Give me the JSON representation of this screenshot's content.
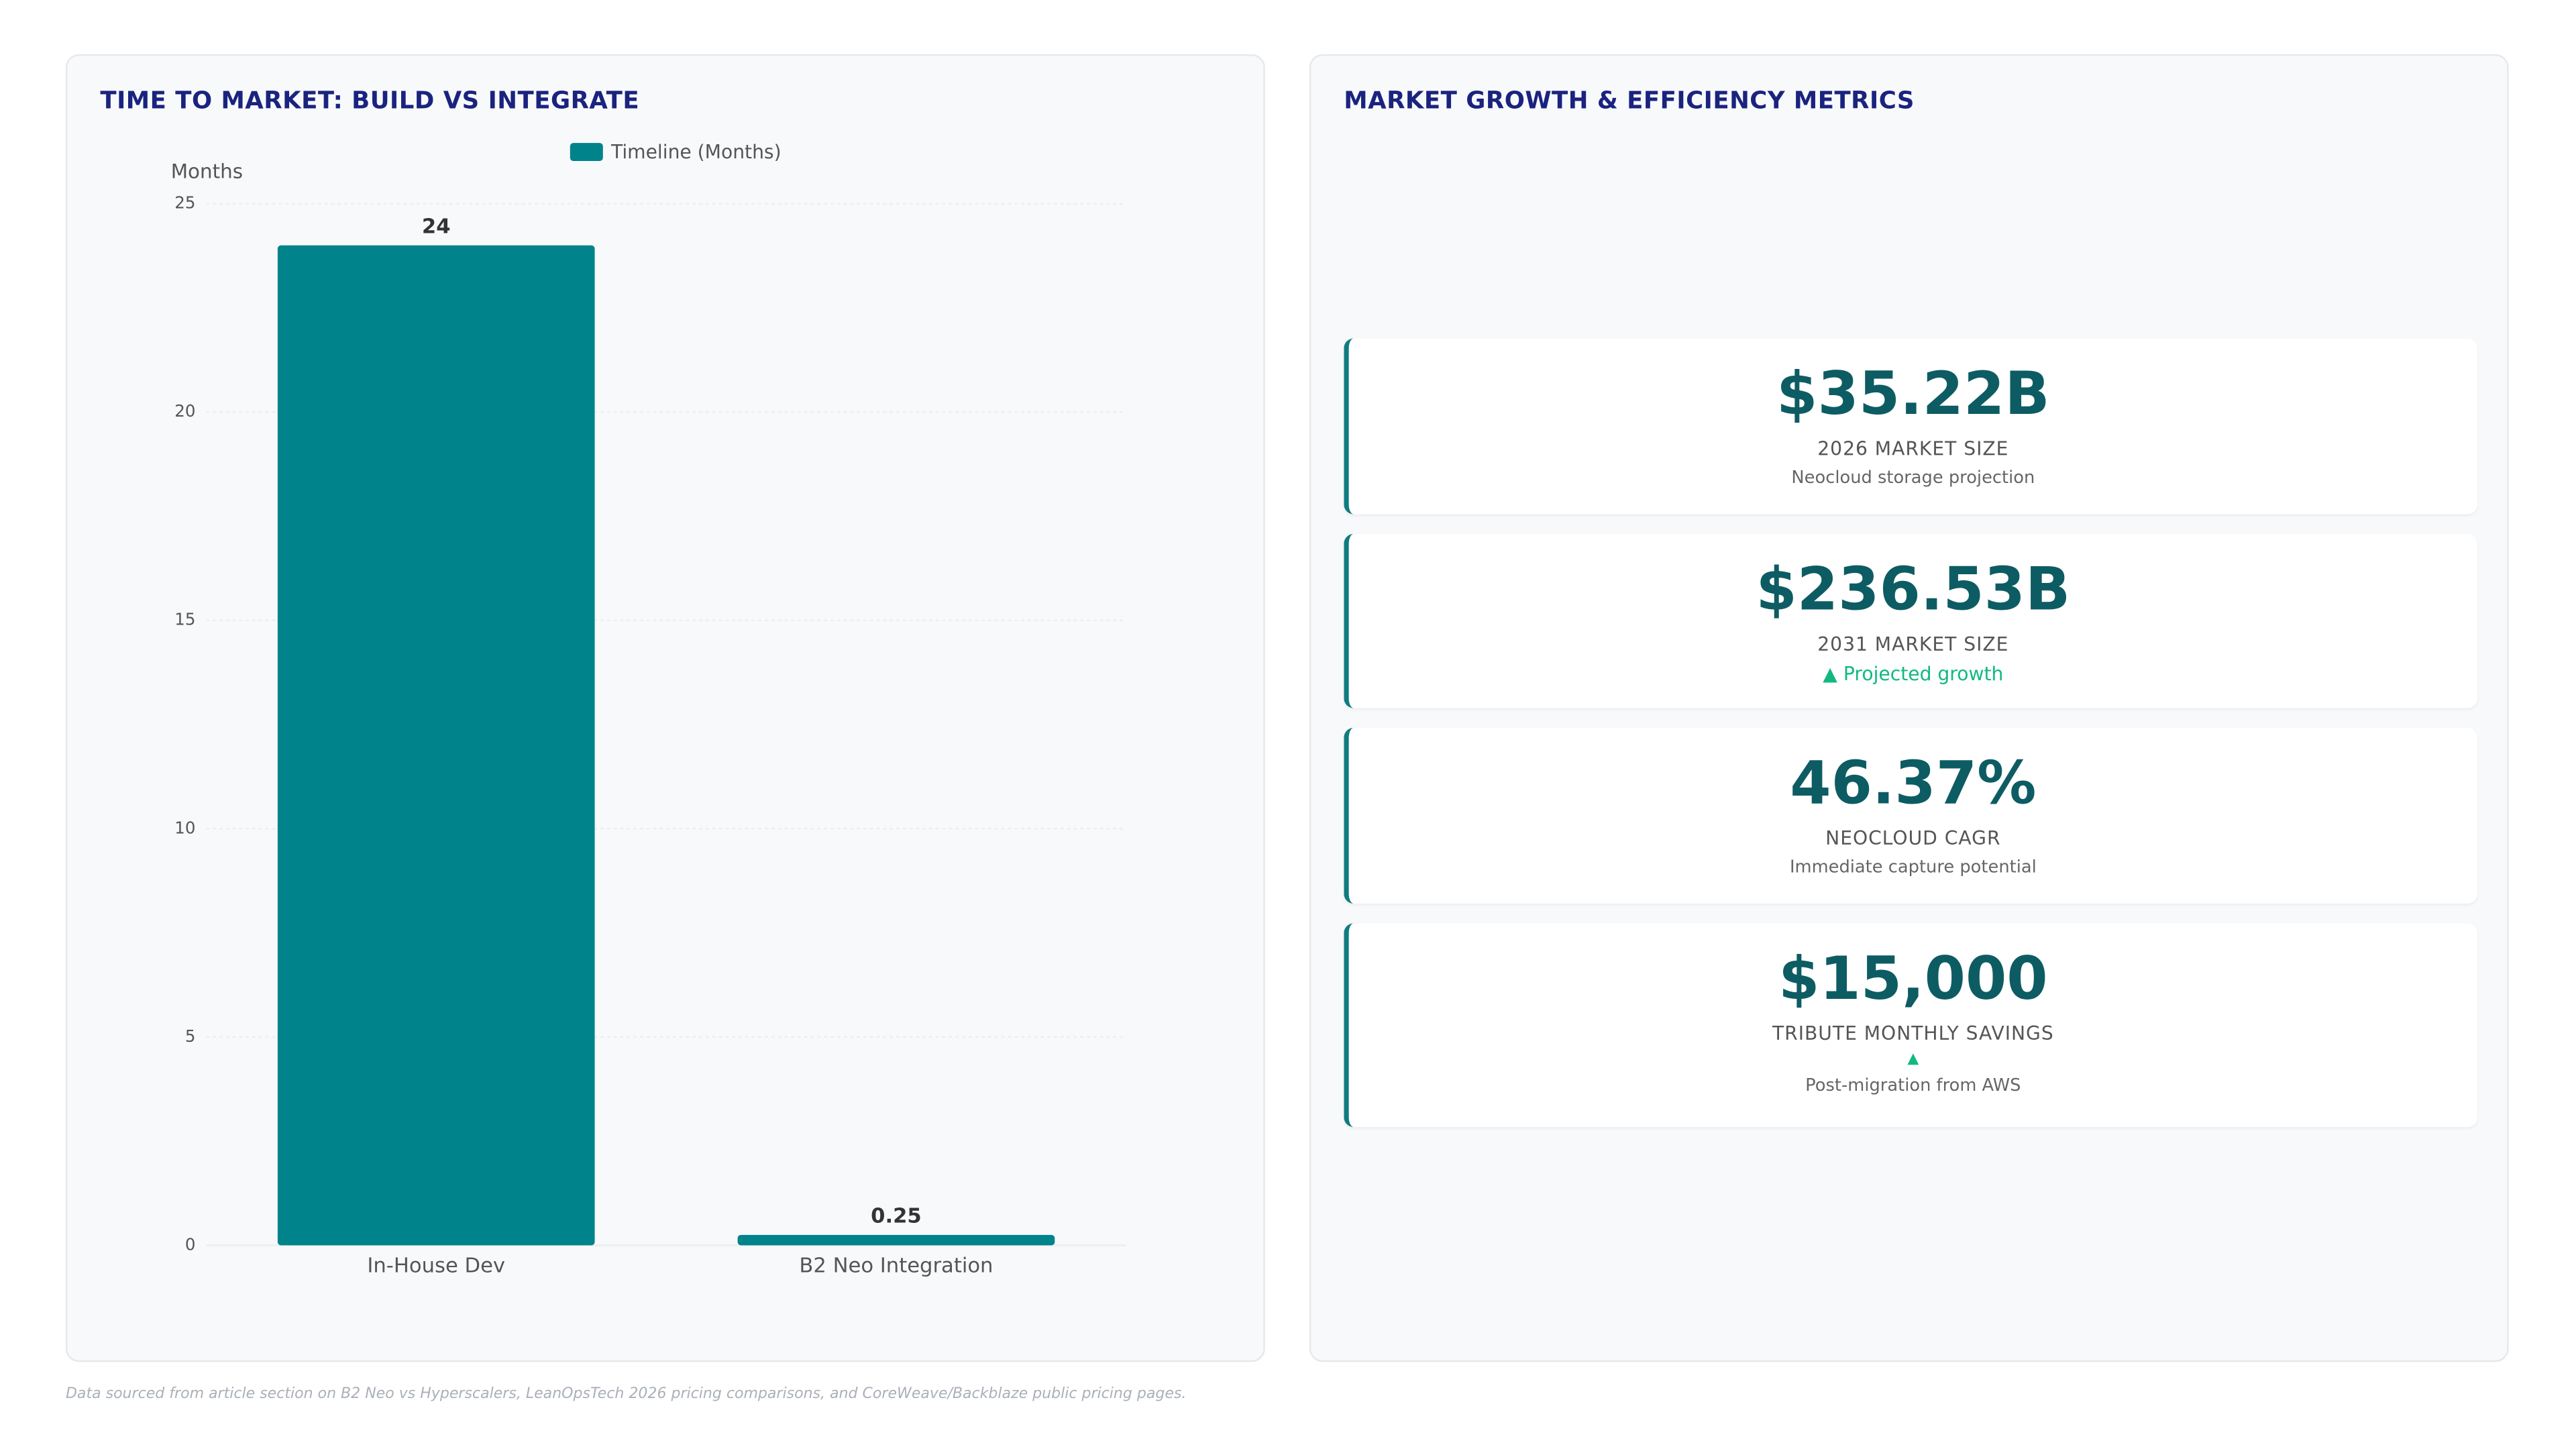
{
  "chart_data": {
    "type": "bar",
    "title": "TIME TO MARKET: BUILD VS INTEGRATE",
    "y_label": "Months",
    "categories": [
      "In-House Dev",
      "B2 Neo Integration"
    ],
    "series": [
      {
        "name": "Timeline (Months)",
        "color": "#00838a",
        "values": [
          24,
          0.25
        ]
      }
    ],
    "ylim": [
      0,
      25
    ],
    "yticks": [
      0,
      5,
      10,
      15,
      20,
      25
    ],
    "grid": true
  },
  "metrics_panel": {
    "title": "MARKET GROWTH & EFFICIENCY METRICS",
    "cards": [
      {
        "value": "$35.22B",
        "label": "2026 MARKET SIZE",
        "note": "Neocloud storage projection"
      },
      {
        "value": "$236.53B",
        "label": "2031 MARKET SIZE",
        "trend": "▲ Projected growth"
      },
      {
        "value": "46.37%",
        "label": "NEOCLOUD CAGR",
        "note": "Immediate capture potential"
      },
      {
        "value": "$15,000",
        "label": "TRIBUTE MONTHLY SAVINGS",
        "trend": "▲",
        "note": "Post-migration from AWS"
      }
    ]
  },
  "footer": "Data sourced from article section on B2 Neo vs Hyperscalers, LeanOpsTech 2026 pricing comparisons, and CoreWeave/Backblaze public pricing pages."
}
